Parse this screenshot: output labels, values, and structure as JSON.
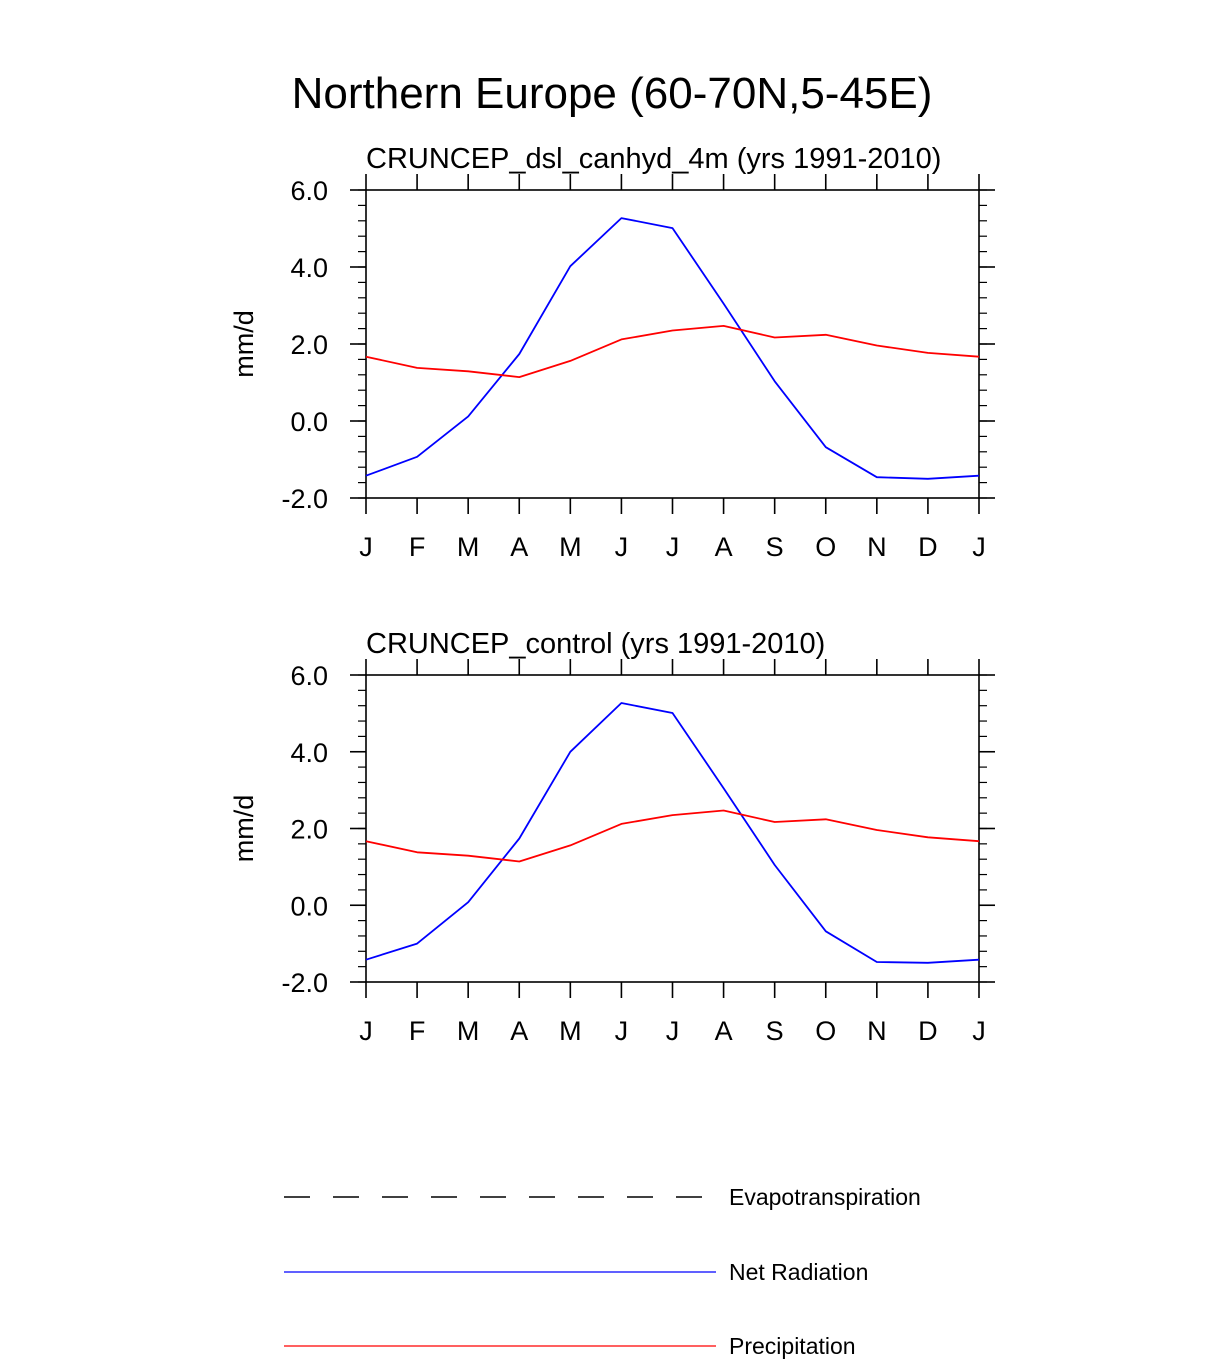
{
  "figure_title": "Northern Europe (60-70N,5-45E)",
  "legend": [
    {
      "label": "Evapotranspiration",
      "color": "#000000",
      "style": "dashed"
    },
    {
      "label": "Net Radiation",
      "color": "#0000ff",
      "style": "solid"
    },
    {
      "label": "Precipitation",
      "color": "#ff0000",
      "style": "solid"
    }
  ],
  "chart_data": [
    {
      "type": "line",
      "title": "CRUNCEP_dsl_canhyd_4m (yrs 1991-2010)",
      "ylabel": "mm/d",
      "xlabel": "",
      "ylim": [
        -2.0,
        6.0
      ],
      "yticks": [
        "6.0",
        "4.0",
        "2.0",
        "0.0",
        "-2.0"
      ],
      "categories": [
        "J",
        "F",
        "M",
        "A",
        "M",
        "J",
        "J",
        "A",
        "S",
        "O",
        "N",
        "D",
        "J"
      ],
      "series": [
        {
          "name": "Net Radiation",
          "color": "#0000ff",
          "values": [
            -1.42,
            -0.93,
            0.12,
            1.74,
            4.02,
            5.27,
            5.01,
            3.05,
            1.03,
            -0.68,
            -1.46,
            -1.5,
            -1.42
          ]
        },
        {
          "name": "Precipitation",
          "color": "#ff0000",
          "values": [
            1.67,
            1.38,
            1.29,
            1.14,
            1.56,
            2.12,
            2.35,
            2.47,
            2.17,
            2.24,
            1.96,
            1.77,
            1.67
          ]
        }
      ],
      "grid": false
    },
    {
      "type": "line",
      "title": "CRUNCEP_control (yrs 1991-2010)",
      "ylabel": "mm/d",
      "xlabel": "",
      "ylim": [
        -2.0,
        6.0
      ],
      "yticks": [
        "6.0",
        "4.0",
        "2.0",
        "0.0",
        "-2.0"
      ],
      "categories": [
        "J",
        "F",
        "M",
        "A",
        "M",
        "J",
        "J",
        "A",
        "S",
        "O",
        "N",
        "D",
        "J"
      ],
      "series": [
        {
          "name": "Net Radiation",
          "color": "#0000ff",
          "values": [
            -1.42,
            -1.0,
            0.08,
            1.74,
            4.0,
            5.27,
            5.01,
            3.05,
            1.05,
            -0.68,
            -1.48,
            -1.5,
            -1.42
          ]
        },
        {
          "name": "Precipitation",
          "color": "#ff0000",
          "values": [
            1.67,
            1.38,
            1.29,
            1.14,
            1.56,
            2.12,
            2.35,
            2.47,
            2.17,
            2.24,
            1.96,
            1.77,
            1.67
          ]
        }
      ],
      "grid": false
    }
  ]
}
